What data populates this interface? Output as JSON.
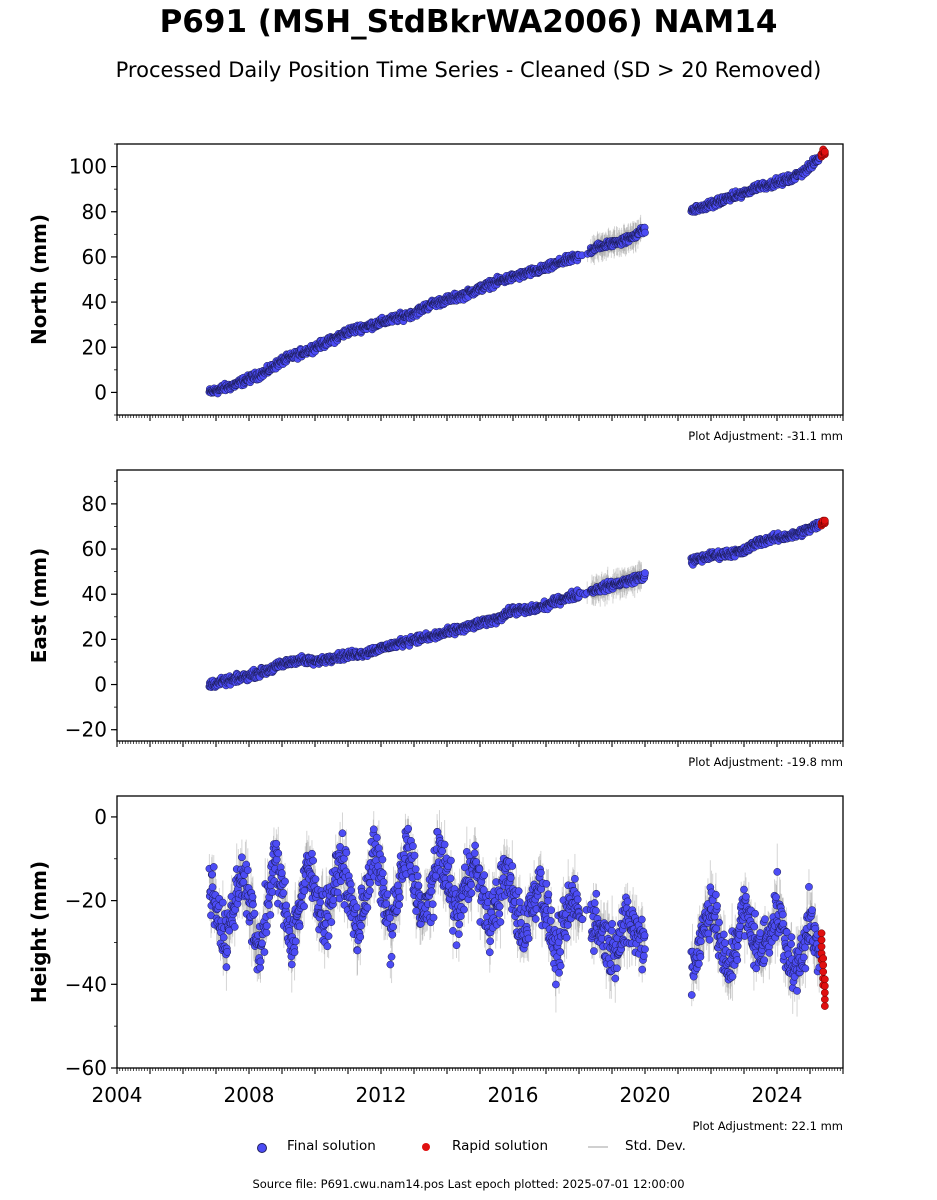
{
  "header": {
    "title": "P691 (MSH_StdBkrWA2006) NAM14",
    "subtitle": "Processed Daily Position Time Series - Cleaned (SD > 20 Removed)"
  },
  "panels": [
    {
      "ylabel": "North (mm)",
      "adjustment": "Plot Adjustment: -31.1 mm"
    },
    {
      "ylabel": "East (mm)",
      "adjustment": "Plot Adjustment: -19.8 mm"
    },
    {
      "ylabel": "Height (mm)",
      "adjustment": "Plot Adjustment: 22.1 mm"
    }
  ],
  "legend": {
    "final": "Final solution",
    "rapid": "Rapid solution",
    "stddev": "Std. Dev."
  },
  "footer": {
    "source": "Source file: P691.cwu.nam14.pos  Last epoch plotted: 2025-07-01 12:00:00"
  },
  "colors": {
    "final": "#4c4cf5",
    "rapid": "#e01010",
    "stddev": "#888888"
  },
  "chart_data": [
    {
      "type": "scatter",
      "ylabel": "North (mm)",
      "xlim": [
        2004,
        2026
      ],
      "ylim": [
        -10,
        110
      ],
      "yticks": [
        0,
        20,
        40,
        60,
        80,
        100
      ],
      "x_ticklabels_shown": false,
      "series": [
        {
          "name": "Final solution",
          "x": [
            2006.8,
            2007.5,
            2008.0,
            2008.5,
            2009.0,
            2009.5,
            2010.0,
            2010.5,
            2011.0,
            2011.5,
            2012.0,
            2012.5,
            2013.0,
            2013.5,
            2014.0,
            2014.5,
            2015.0,
            2015.5,
            2016.0,
            2016.5,
            2017.0,
            2017.5,
            2018.0,
            2018.5,
            2019.0,
            2019.5,
            2019.95,
            2021.5,
            2022.0,
            2022.5,
            2023.0,
            2023.4,
            2024.0,
            2024.5,
            2025.0,
            2025.3
          ],
          "y": [
            0,
            3,
            6,
            9,
            14,
            17,
            20,
            23,
            27,
            29,
            31,
            33,
            35,
            39,
            41,
            43,
            46,
            49,
            51,
            53,
            55,
            58,
            60,
            64,
            66,
            68,
            72,
            81,
            83,
            86,
            88,
            91,
            93,
            95,
            100,
            104
          ]
        },
        {
          "name": "Rapid solution",
          "x": [
            2025.35,
            2025.4,
            2025.45
          ],
          "y": [
            105,
            107,
            106
          ]
        }
      ]
    },
    {
      "type": "scatter",
      "ylabel": "East (mm)",
      "xlim": [
        2004,
        2026
      ],
      "ylim": [
        -25,
        95
      ],
      "yticks": [
        -20,
        0,
        20,
        40,
        60,
        80
      ],
      "x_ticklabels_shown": false,
      "series": [
        {
          "name": "Final solution",
          "x": [
            2006.8,
            2007.5,
            2008.0,
            2008.5,
            2009.0,
            2009.5,
            2010.0,
            2010.5,
            2011.0,
            2011.5,
            2012.0,
            2012.5,
            2013.0,
            2013.5,
            2014.0,
            2014.5,
            2015.0,
            2015.5,
            2016.0,
            2016.5,
            2017.0,
            2017.5,
            2018.0,
            2018.5,
            2019.0,
            2019.5,
            2019.95,
            2021.5,
            2022.0,
            2022.5,
            2023.0,
            2023.4,
            2024.0,
            2024.5,
            2025.0,
            2025.3
          ],
          "y": [
            0,
            2,
            4,
            6,
            9,
            11,
            10,
            12,
            13,
            14,
            16,
            18,
            20,
            21,
            23,
            25,
            27,
            29,
            33,
            33,
            35,
            38,
            40,
            42,
            44,
            46,
            48,
            55,
            57,
            58,
            59,
            63,
            65,
            66,
            69,
            71
          ]
        },
        {
          "name": "Rapid solution",
          "x": [
            2025.35,
            2025.4,
            2025.45
          ],
          "y": [
            71,
            72,
            72
          ]
        }
      ]
    },
    {
      "type": "scatter",
      "ylabel": "Height (mm)",
      "xlim": [
        2004,
        2026
      ],
      "ylim": [
        -60,
        5
      ],
      "yticks": [
        -60,
        -40,
        -20,
        0
      ],
      "xticks": [
        2004,
        2008,
        2012,
        2016,
        2020,
        2024
      ],
      "series": [
        {
          "name": "Final solution",
          "x": [
            2006.8,
            2007.3,
            2007.8,
            2008.3,
            2008.8,
            2009.3,
            2009.8,
            2010.3,
            2010.8,
            2011.3,
            2011.8,
            2012.3,
            2012.8,
            2013.3,
            2013.8,
            2014.3,
            2014.8,
            2015.3,
            2015.8,
            2016.3,
            2016.8,
            2017.3,
            2017.8,
            2018.5,
            2019.0,
            2019.5,
            2019.95,
            2021.5,
            2022.0,
            2022.5,
            2023.0,
            2023.5,
            2024.0,
            2024.5,
            2025.0,
            2025.3
          ],
          "y": [
            -15,
            -30,
            -12,
            -33,
            -10,
            -30,
            -12,
            -25,
            -10,
            -28,
            -8,
            -27,
            -7,
            -25,
            -8,
            -24,
            -10,
            -26,
            -13,
            -28,
            -15,
            -33,
            -20,
            -25,
            -32,
            -25,
            -30,
            -35,
            -20,
            -38,
            -22,
            -33,
            -22,
            -38,
            -25,
            -35
          ]
        },
        {
          "name": "Rapid solution",
          "x": [
            2025.35,
            2025.4,
            2025.45
          ],
          "y": [
            -31,
            -37,
            -42
          ]
        }
      ]
    }
  ]
}
